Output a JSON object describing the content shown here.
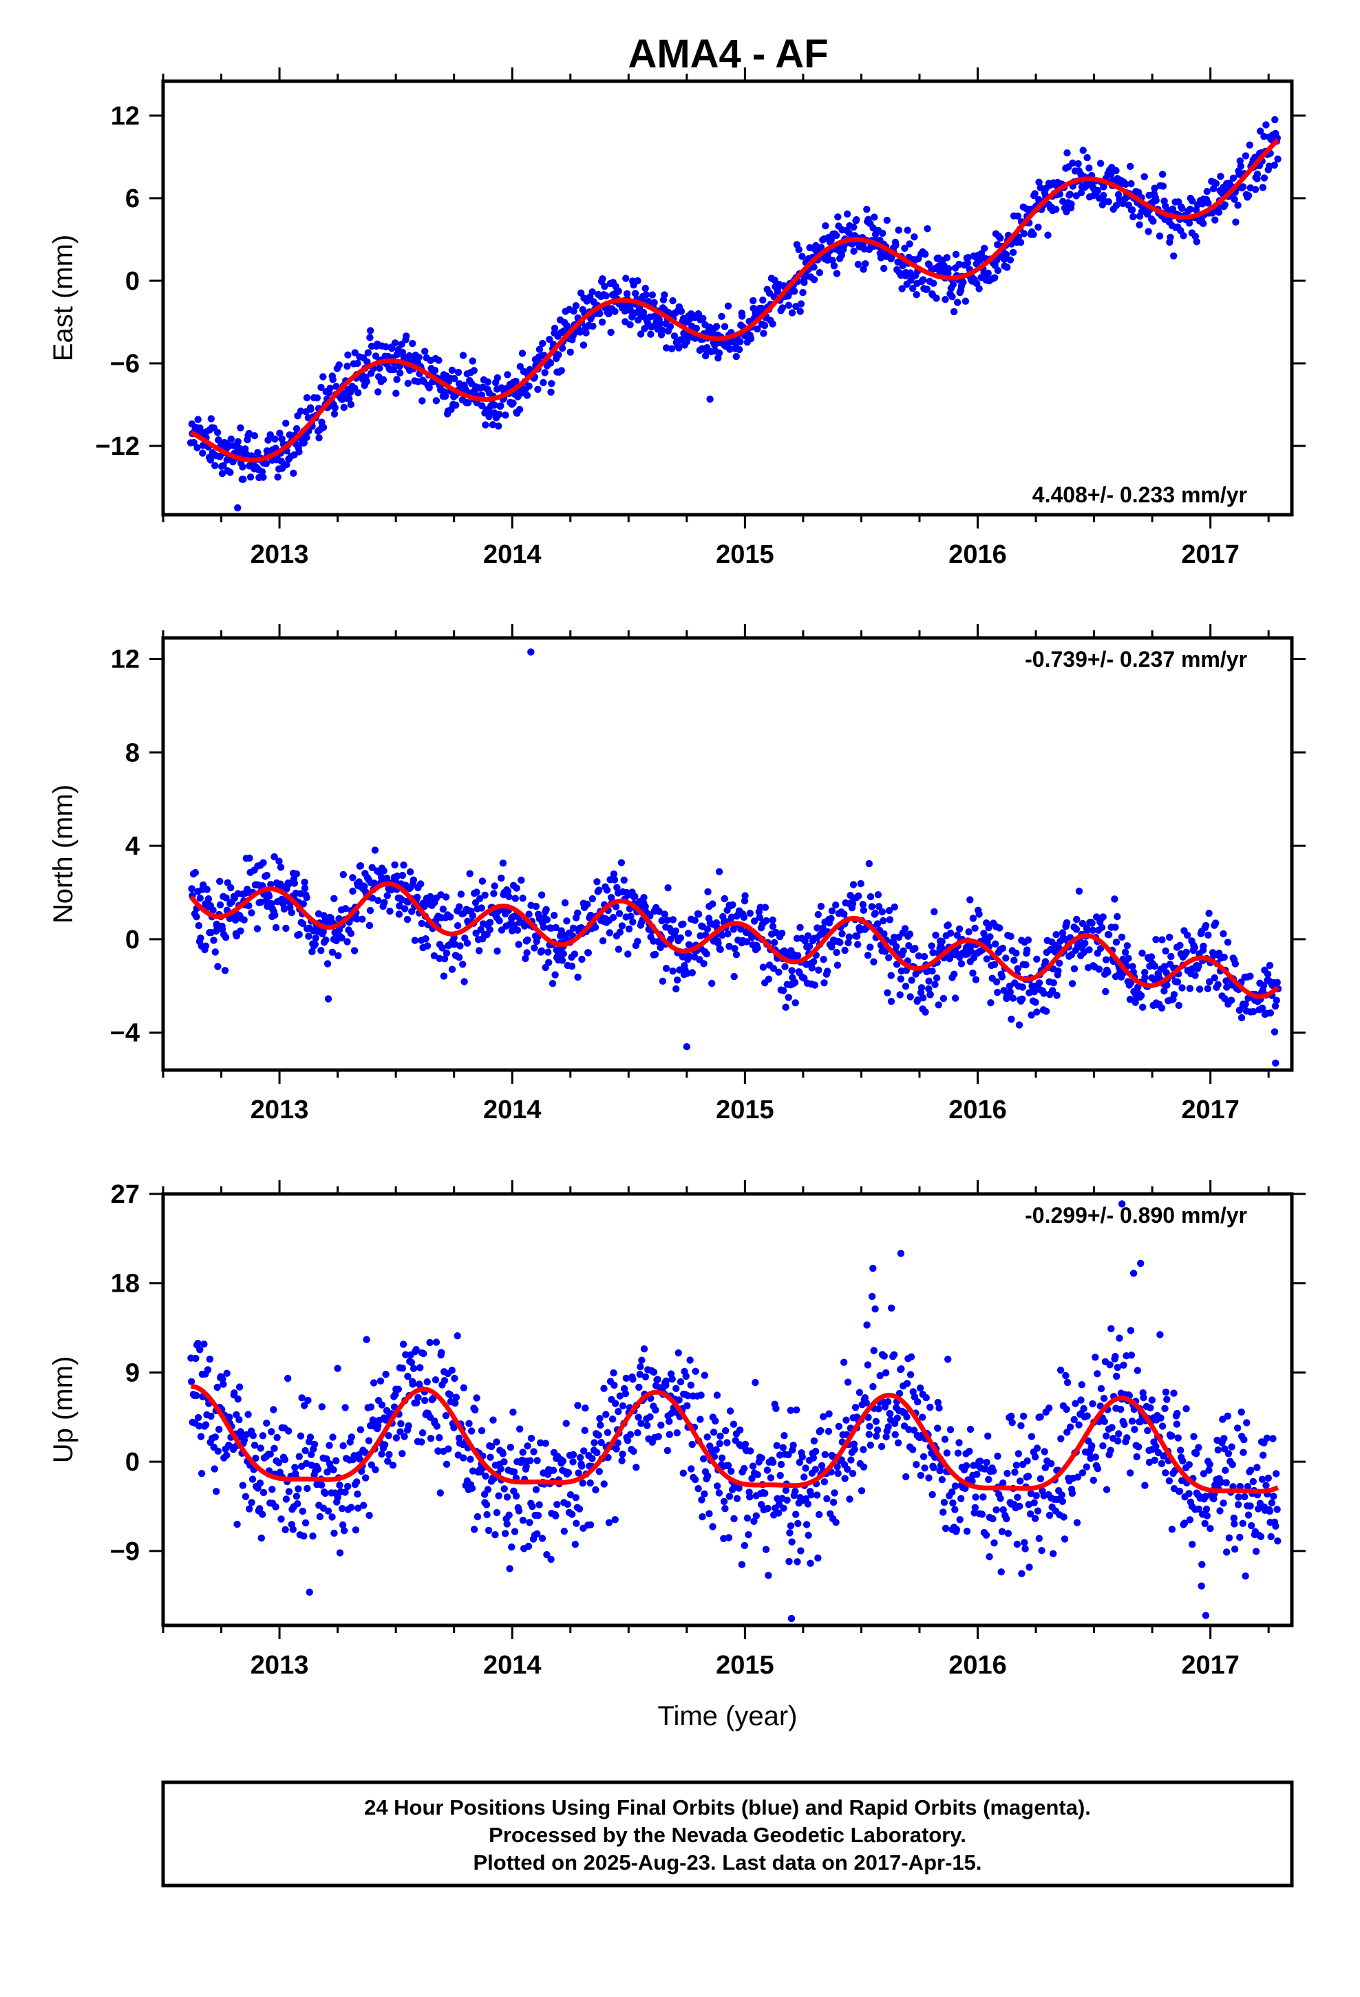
{
  "figure": {
    "title": "AMA4 - AF",
    "caption_lines": [
      "24 Hour Positions Using Final Orbits (blue) and Rapid Orbits (magenta).",
      "Processed by the Nevada Geodetic Laboratory.",
      "Plotted on 2025-Aug-23. Last data on 2017-Apr-15."
    ],
    "colors": {
      "final_orbits": "#0000ff",
      "model_fit": "#ff0000",
      "frame": "#000000"
    }
  },
  "chart_data": [
    {
      "type": "scatter",
      "component": "east",
      "ylabel": "East (mm)",
      "xlabel": "",
      "xlim": [
        2012.5,
        2017.35
      ],
      "ylim": [
        -17,
        14.5
      ],
      "xticks": [
        2013,
        2014,
        2015,
        2016,
        2017
      ],
      "xtick_labels": [
        "2013",
        "2014",
        "2015",
        "2016",
        "2017"
      ],
      "yticks": [
        -12,
        -6,
        0,
        6,
        12
      ],
      "ytick_labels": [
        "−12",
        "−6",
        "0",
        "6",
        "12"
      ],
      "rate_text": "4.408+/- 0.233 mm/yr",
      "rate_position": "bottom-right",
      "x_range": [
        2012.62,
        2017.29
      ],
      "trend": {
        "mm_per_yr": 4.408,
        "value_at_2015": -1.4
      },
      "seasonal": {
        "annual_amplitude": 2.4,
        "annual_peak": 2015.43
      },
      "scatter_sd": 0.95,
      "outliers": [
        [
          2014.85,
          -8.6
        ],
        [
          2012.82,
          -16.5
        ]
      ]
    },
    {
      "type": "scatter",
      "component": "north",
      "ylabel": "North (mm)",
      "xlabel": "",
      "xlim": [
        2012.5,
        2017.35
      ],
      "ylim": [
        -5.6,
        12.9
      ],
      "xticks": [
        2013,
        2014,
        2015,
        2016,
        2017
      ],
      "xtick_labels": [
        "2013",
        "2014",
        "2015",
        "2016",
        "2017"
      ],
      "yticks": [
        -4,
        0,
        4,
        8,
        12
      ],
      "ytick_labels": [
        "−4",
        "0",
        "4",
        "8",
        "12"
      ],
      "rate_text": "-0.739+/- 0.237 mm/yr",
      "rate_position": "top-right",
      "x_range": [
        2012.62,
        2017.29
      ],
      "trend": {
        "mm_per_yr": -0.739,
        "value_at_2015": 0.1
      },
      "seasonal": {
        "annual_amplitude": 0.3,
        "semiannual_amplitude": 0.85,
        "semiannual_peak": 2014.47
      },
      "scatter_sd": 0.85,
      "outliers": [
        [
          2014.08,
          12.3
        ],
        [
          2014.75,
          -4.6
        ],
        [
          2017.28,
          -5.3
        ]
      ]
    },
    {
      "type": "scatter",
      "component": "up",
      "ylabel": "Up (mm)",
      "xlabel": "Time (year)",
      "xlim": [
        2012.5,
        2017.35
      ],
      "ylim": [
        -16.5,
        27
      ],
      "xticks": [
        2013,
        2014,
        2015,
        2016,
        2017
      ],
      "xtick_labels": [
        "2013",
        "2014",
        "2015",
        "2016",
        "2017"
      ],
      "yticks": [
        -9,
        0,
        9,
        18,
        27
      ],
      "ytick_labels": [
        "−9",
        "0",
        "9",
        "18",
        "27"
      ],
      "rate_text": "-0.299+/- 0.890 mm/yr",
      "rate_position": "top-right",
      "x_range": [
        2012.62,
        2017.29
      ],
      "trend": {
        "mm_per_yr": -0.299,
        "value_at_2015": 1.0
      },
      "seasonal": {
        "annual_amplitude": 4.6,
        "annual_peak": 2015.62,
        "semiannual_amplitude": 1.3
      },
      "scatter_sd": 3.6,
      "outliers": [
        [
          2015.55,
          19.5
        ],
        [
          2015.67,
          21.0
        ],
        [
          2016.67,
          19.0
        ],
        [
          2016.7,
          20.0
        ],
        [
          2016.62,
          26.0
        ],
        [
          2016.98,
          -15.5
        ],
        [
          2015.2,
          -15.8
        ]
      ]
    }
  ]
}
